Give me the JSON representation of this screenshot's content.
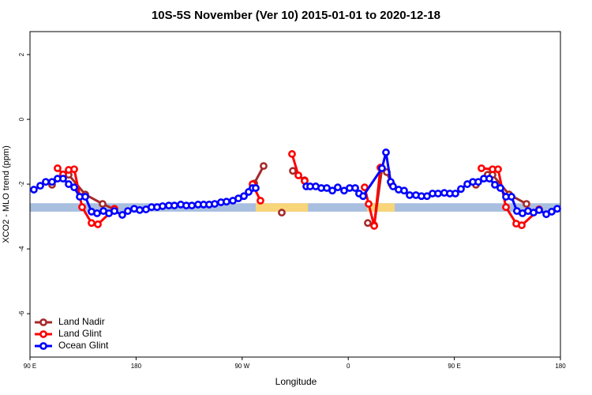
{
  "chart_data": {
    "type": "line",
    "title": "10S-5S November (Ver 10)   2015-01-01 to 2020-12-18",
    "x_label": "Longitude",
    "y_label": "XCO2 - MLO trend (ppm)",
    "xlim": [
      90,
      540
    ],
    "ylim": [
      -7.34,
      2.71
    ],
    "xticks": [
      {
        "value": 90,
        "label": "90 E"
      },
      {
        "value": 180,
        "label": "180"
      },
      {
        "value": 270,
        "label": "90 W"
      },
      {
        "value": 360,
        "label": "0"
      },
      {
        "value": 450,
        "label": "90 E"
      },
      {
        "value": 540,
        "label": "180"
      }
    ],
    "yticks": [
      2,
      0,
      -2,
      -4,
      -6
    ],
    "band": {
      "ymin": -2.85,
      "ymax": -2.59,
      "color": "#a9bfe0",
      "highlight_color": "#f9d57a",
      "highlights": [
        [
          281.5,
          325.8
        ],
        [
          376,
          399.4
        ]
      ]
    },
    "legend": "bottom-left",
    "series": [
      {
        "name": "Land Nadir",
        "color": "#a52a2a",
        "x": [
          108.7,
          118.1,
          122.8,
          136.9,
          151.6,
          161.6,
          null,
          280.2,
          288.2,
          null,
          303.6,
          null,
          313.0,
          323.0,
          null,
          376.6,
          382.0,
          388.6,
          392.7,
          396.7,
          null,
          468.3,
          478.3,
          482.4,
          496.5,
          511.2
        ],
        "values": [
          -2.02,
          -1.71,
          -1.71,
          -2.32,
          -2.61,
          -2.78,
          null,
          -1.98,
          -1.44,
          null,
          -2.88,
          null,
          -1.59,
          -1.88,
          null,
          -3.2,
          -3.27,
          -1.51,
          -1.63,
          -2.0,
          null,
          -2.02,
          -1.71,
          -1.71,
          -2.32,
          -2.61
        ]
      },
      {
        "name": "Land Glint",
        "color": "#ff0000",
        "x": [
          113.4,
          118.1,
          122.8,
          127.5,
          134.2,
          142.2,
          147.6,
          161.6,
          null,
          278.8,
          285.5,
          null,
          312.3,
          317.7,
          323.0,
          null,
          373.9,
          377.3,
          382.0,
          387.3,
          null,
          473.0,
          482.4,
          487.1,
          493.8,
          502.5,
          507.2,
          521.9
        ],
        "values": [
          -1.51,
          -1.7,
          -1.56,
          -1.54,
          -2.71,
          -3.2,
          -3.24,
          -2.76,
          null,
          -2.0,
          -2.51,
          null,
          -1.07,
          -1.73,
          -1.9,
          null,
          -2.1,
          -2.61,
          -3.29,
          -1.49,
          null,
          -1.51,
          -1.54,
          -1.54,
          -2.71,
          -3.22,
          -3.27,
          -2.78
        ]
      },
      {
        "name": "Ocean Glint",
        "color": "#0000ff",
        "x": [
          93.3,
          98.7,
          103.4,
          108.7,
          113.4,
          118.1,
          122.8,
          127.5,
          132.2,
          136.9,
          142.2,
          146.9,
          152.3,
          157.0,
          161.6,
          168.3,
          173.0,
          178.4,
          183.1,
          188.4,
          193.1,
          197.8,
          202.5,
          207.8,
          212.5,
          217.9,
          222.6,
          227.3,
          232.6,
          237.3,
          242.0,
          246.7,
          252.0,
          256.7,
          262.1,
          266.8,
          271.5,
          275.5,
          278.8,
          281.5,
          null,
          324.4,
          327.7,
          332.4,
          337.1,
          341.8,
          346.5,
          351.1,
          356.5,
          361.2,
          365.9,
          369.2,
          372.6,
          388.6,
          392.0,
          396.0,
          398.0,
          402.7,
          407.4,
          412.1,
          417.4,
          422.1,
          426.8,
          431.5,
          436.2,
          441.5,
          446.2,
          450.9,
          455.6,
          461.0,
          465.7,
          470.3,
          475.0,
          479.7,
          484.4,
          489.1,
          493.8,
          498.5,
          503.1,
          507.8,
          512.5,
          517.2,
          521.9,
          528.0,
          532.6,
          537.3
        ],
        "values": [
          -2.17,
          -2.05,
          -1.93,
          -1.93,
          -1.83,
          -1.83,
          -2.0,
          -2.1,
          -2.39,
          -2.39,
          -2.85,
          -2.9,
          -2.83,
          -2.9,
          -2.83,
          -2.95,
          -2.83,
          -2.76,
          -2.8,
          -2.78,
          -2.71,
          -2.71,
          -2.68,
          -2.66,
          -2.66,
          -2.63,
          -2.66,
          -2.66,
          -2.63,
          -2.63,
          -2.63,
          -2.61,
          -2.56,
          -2.54,
          -2.51,
          -2.44,
          -2.37,
          -2.24,
          -2.12,
          -2.12,
          null,
          -2.07,
          -2.07,
          -2.07,
          -2.12,
          -2.12,
          -2.2,
          -2.1,
          -2.2,
          -2.12,
          -2.12,
          -2.29,
          -2.37,
          -1.51,
          -1.02,
          -1.93,
          -2.07,
          -2.17,
          -2.2,
          -2.34,
          -2.34,
          -2.37,
          -2.37,
          -2.29,
          -2.29,
          -2.27,
          -2.29,
          -2.29,
          -2.15,
          -2.0,
          -1.93,
          -1.93,
          -1.83,
          -1.83,
          -2.02,
          -2.12,
          -2.39,
          -2.39,
          -2.83,
          -2.9,
          -2.83,
          -2.88,
          -2.8,
          -2.93,
          -2.85,
          -2.76
        ]
      }
    ]
  }
}
